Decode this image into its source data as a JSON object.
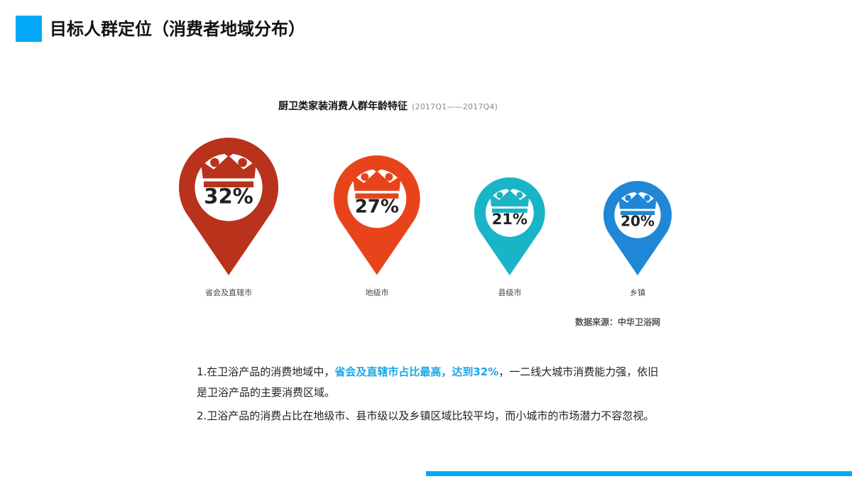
{
  "colors": {
    "accent": "#03a9f4",
    "pin_1": "#b9321b",
    "pin_2": "#e8441c",
    "pin_3": "#1ab4c7",
    "pin_4": "#1f87d6",
    "highlight_text": "#1aa7e6"
  },
  "header": {
    "title": "目标人群定位（消费者地域分布）"
  },
  "chart": {
    "title": "厨卫类家装消费人群年龄特征",
    "period": "(2017Q1——2017Q4)",
    "source": "数据来源：中华卫浴网",
    "icon": "crown-icon"
  },
  "chart_data": {
    "type": "pin-infographic",
    "title": "厨卫类家装消费人群年龄特征",
    "subtitle": "(2017Q1——2017Q4)",
    "categories": [
      "省会及直辖市",
      "地级市",
      "县级市",
      "乡镇"
    ],
    "values": [
      32,
      27,
      21,
      20
    ],
    "value_labels": [
      "32%",
      "27%",
      "21%",
      "20%"
    ],
    "colors": [
      "#b9321b",
      "#e8441c",
      "#1ab4c7",
      "#1f87d6"
    ]
  },
  "notes": {
    "p1_before": "1.在卫浴产品的消费地域中，",
    "p1_highlight": "省会及直辖市占比最高，达到32%",
    "p1_after": "，一二线大城市消费能力强，依旧是卫浴产品的主要消费区域。",
    "p2": "2.卫浴产品的消费占比在地级市、县市级以及乡镇区域比较平均，而小城市的市场潜力不容忽视。"
  }
}
